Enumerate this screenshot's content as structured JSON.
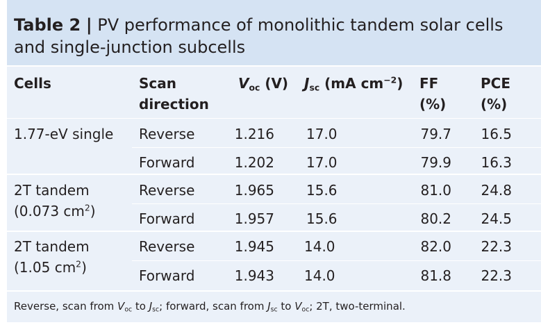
{
  "table": {
    "label": "Table 2",
    "separator": "|",
    "caption": "PV performance of monolithic tandem solar cells and single-junction subcells",
    "headers": {
      "cells": "Cells",
      "scan_line1": "Scan",
      "scan_line2": "direction",
      "voc_symbol": "V",
      "voc_sub": "oc",
      "voc_unit": "(V)",
      "jsc_symbol": "J",
      "jsc_sub": "sc",
      "jsc_unit_a": "(mA cm",
      "jsc_unit_sup": "−2",
      "jsc_unit_b": ")",
      "ff": "FF",
      "ff_unit": "(%)",
      "pce": "PCE",
      "pce_unit": "(%)"
    },
    "groups": [
      {
        "cell_line1": "1.77-eV single",
        "cell_line2": "",
        "cell_line2_sup": "",
        "cell_line2_end": "",
        "rows": [
          {
            "scan": "Reverse",
            "voc": "1.216",
            "jsc": "17.0",
            "ff": "79.7",
            "pce": "16.5"
          },
          {
            "scan": "Forward",
            "voc": "1.202",
            "jsc": "17.0",
            "ff": "79.9",
            "pce": "16.3"
          }
        ]
      },
      {
        "cell_line1": "2T tandem",
        "cell_line2": "(0.073 cm",
        "cell_line2_sup": "2",
        "cell_line2_end": ")",
        "rows": [
          {
            "scan": "Reverse",
            "voc": "1.965",
            "jsc": "15.6",
            "ff": "81.0",
            "pce": "24.8"
          },
          {
            "scan": "Forward",
            "voc": "1.957",
            "jsc": "15.6",
            "ff": "80.2",
            "pce": "24.5"
          }
        ]
      },
      {
        "cell_line1": "2T tandem",
        "cell_line2": "(1.05 cm",
        "cell_line2_sup": "2",
        "cell_line2_end": ")",
        "rows": [
          {
            "scan": "Reverse",
            "voc": "1.945",
            "jsc": "14.0",
            "ff": "82.0",
            "pce": "22.3"
          },
          {
            "scan": "Forward",
            "voc": "1.943",
            "jsc": "14.0",
            "ff": "81.8",
            "pce": "22.3"
          }
        ]
      }
    ],
    "footnote": {
      "p1": "Reverse, scan from ",
      "voc_symbol": "V",
      "voc_sub": "oc",
      "p2": " to ",
      "jsc_symbol": "J",
      "jsc_sub": "sc",
      "p3": "; forward, scan from ",
      "p4": " to ",
      "p5": "; 2T, two-terminal."
    }
  }
}
